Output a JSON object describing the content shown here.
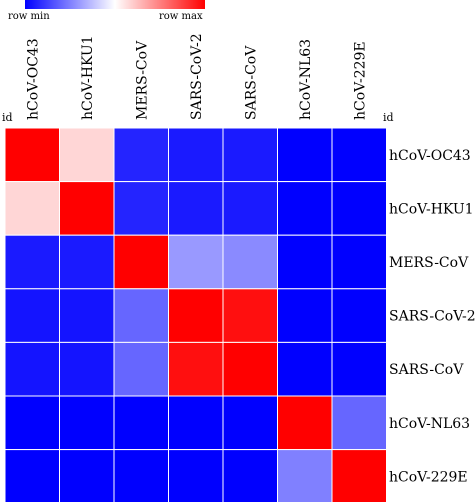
{
  "legend": {
    "min_label": "row min",
    "max_label": "row max",
    "colors": [
      "#0000ff",
      "#ffffff",
      "#ff0000"
    ]
  },
  "corner": {
    "left_label": "id",
    "right_label": "id"
  },
  "chart_data": {
    "type": "heatmap",
    "columns": [
      "hCoV-OC43",
      "hCoV-HKU1",
      "MERS-CoV",
      "SARS-CoV-2",
      "SARS-CoV",
      "hCoV-NL63",
      "hCoV-229E"
    ],
    "rows": [
      "hCoV-OC43",
      "hCoV-HKU1",
      "MERS-CoV",
      "SARS-CoV-2",
      "SARS-CoV",
      "hCoV-NL63",
      "hCoV-229E"
    ],
    "values": [
      [
        1.0,
        0.58,
        0.07,
        0.05,
        0.05,
        0.0,
        0.0
      ],
      [
        0.58,
        1.0,
        0.07,
        0.05,
        0.05,
        0.0,
        0.0
      ],
      [
        0.05,
        0.05,
        1.0,
        0.3,
        0.27,
        0.0,
        0.0
      ],
      [
        0.04,
        0.04,
        0.2,
        1.0,
        0.97,
        0.0,
        0.0
      ],
      [
        0.04,
        0.04,
        0.2,
        0.97,
        1.0,
        0.0,
        0.0
      ],
      [
        0.0,
        0.0,
        0.0,
        0.0,
        0.0,
        1.0,
        0.2
      ],
      [
        0.0,
        0.0,
        0.0,
        0.0,
        0.0,
        0.25,
        1.0
      ]
    ],
    "color_scale": {
      "low": "#0000ff",
      "mid": "#ffffff",
      "high": "#ff0000",
      "range": [
        0,
        1
      ]
    },
    "legend_position": "top-left",
    "grid": true
  }
}
